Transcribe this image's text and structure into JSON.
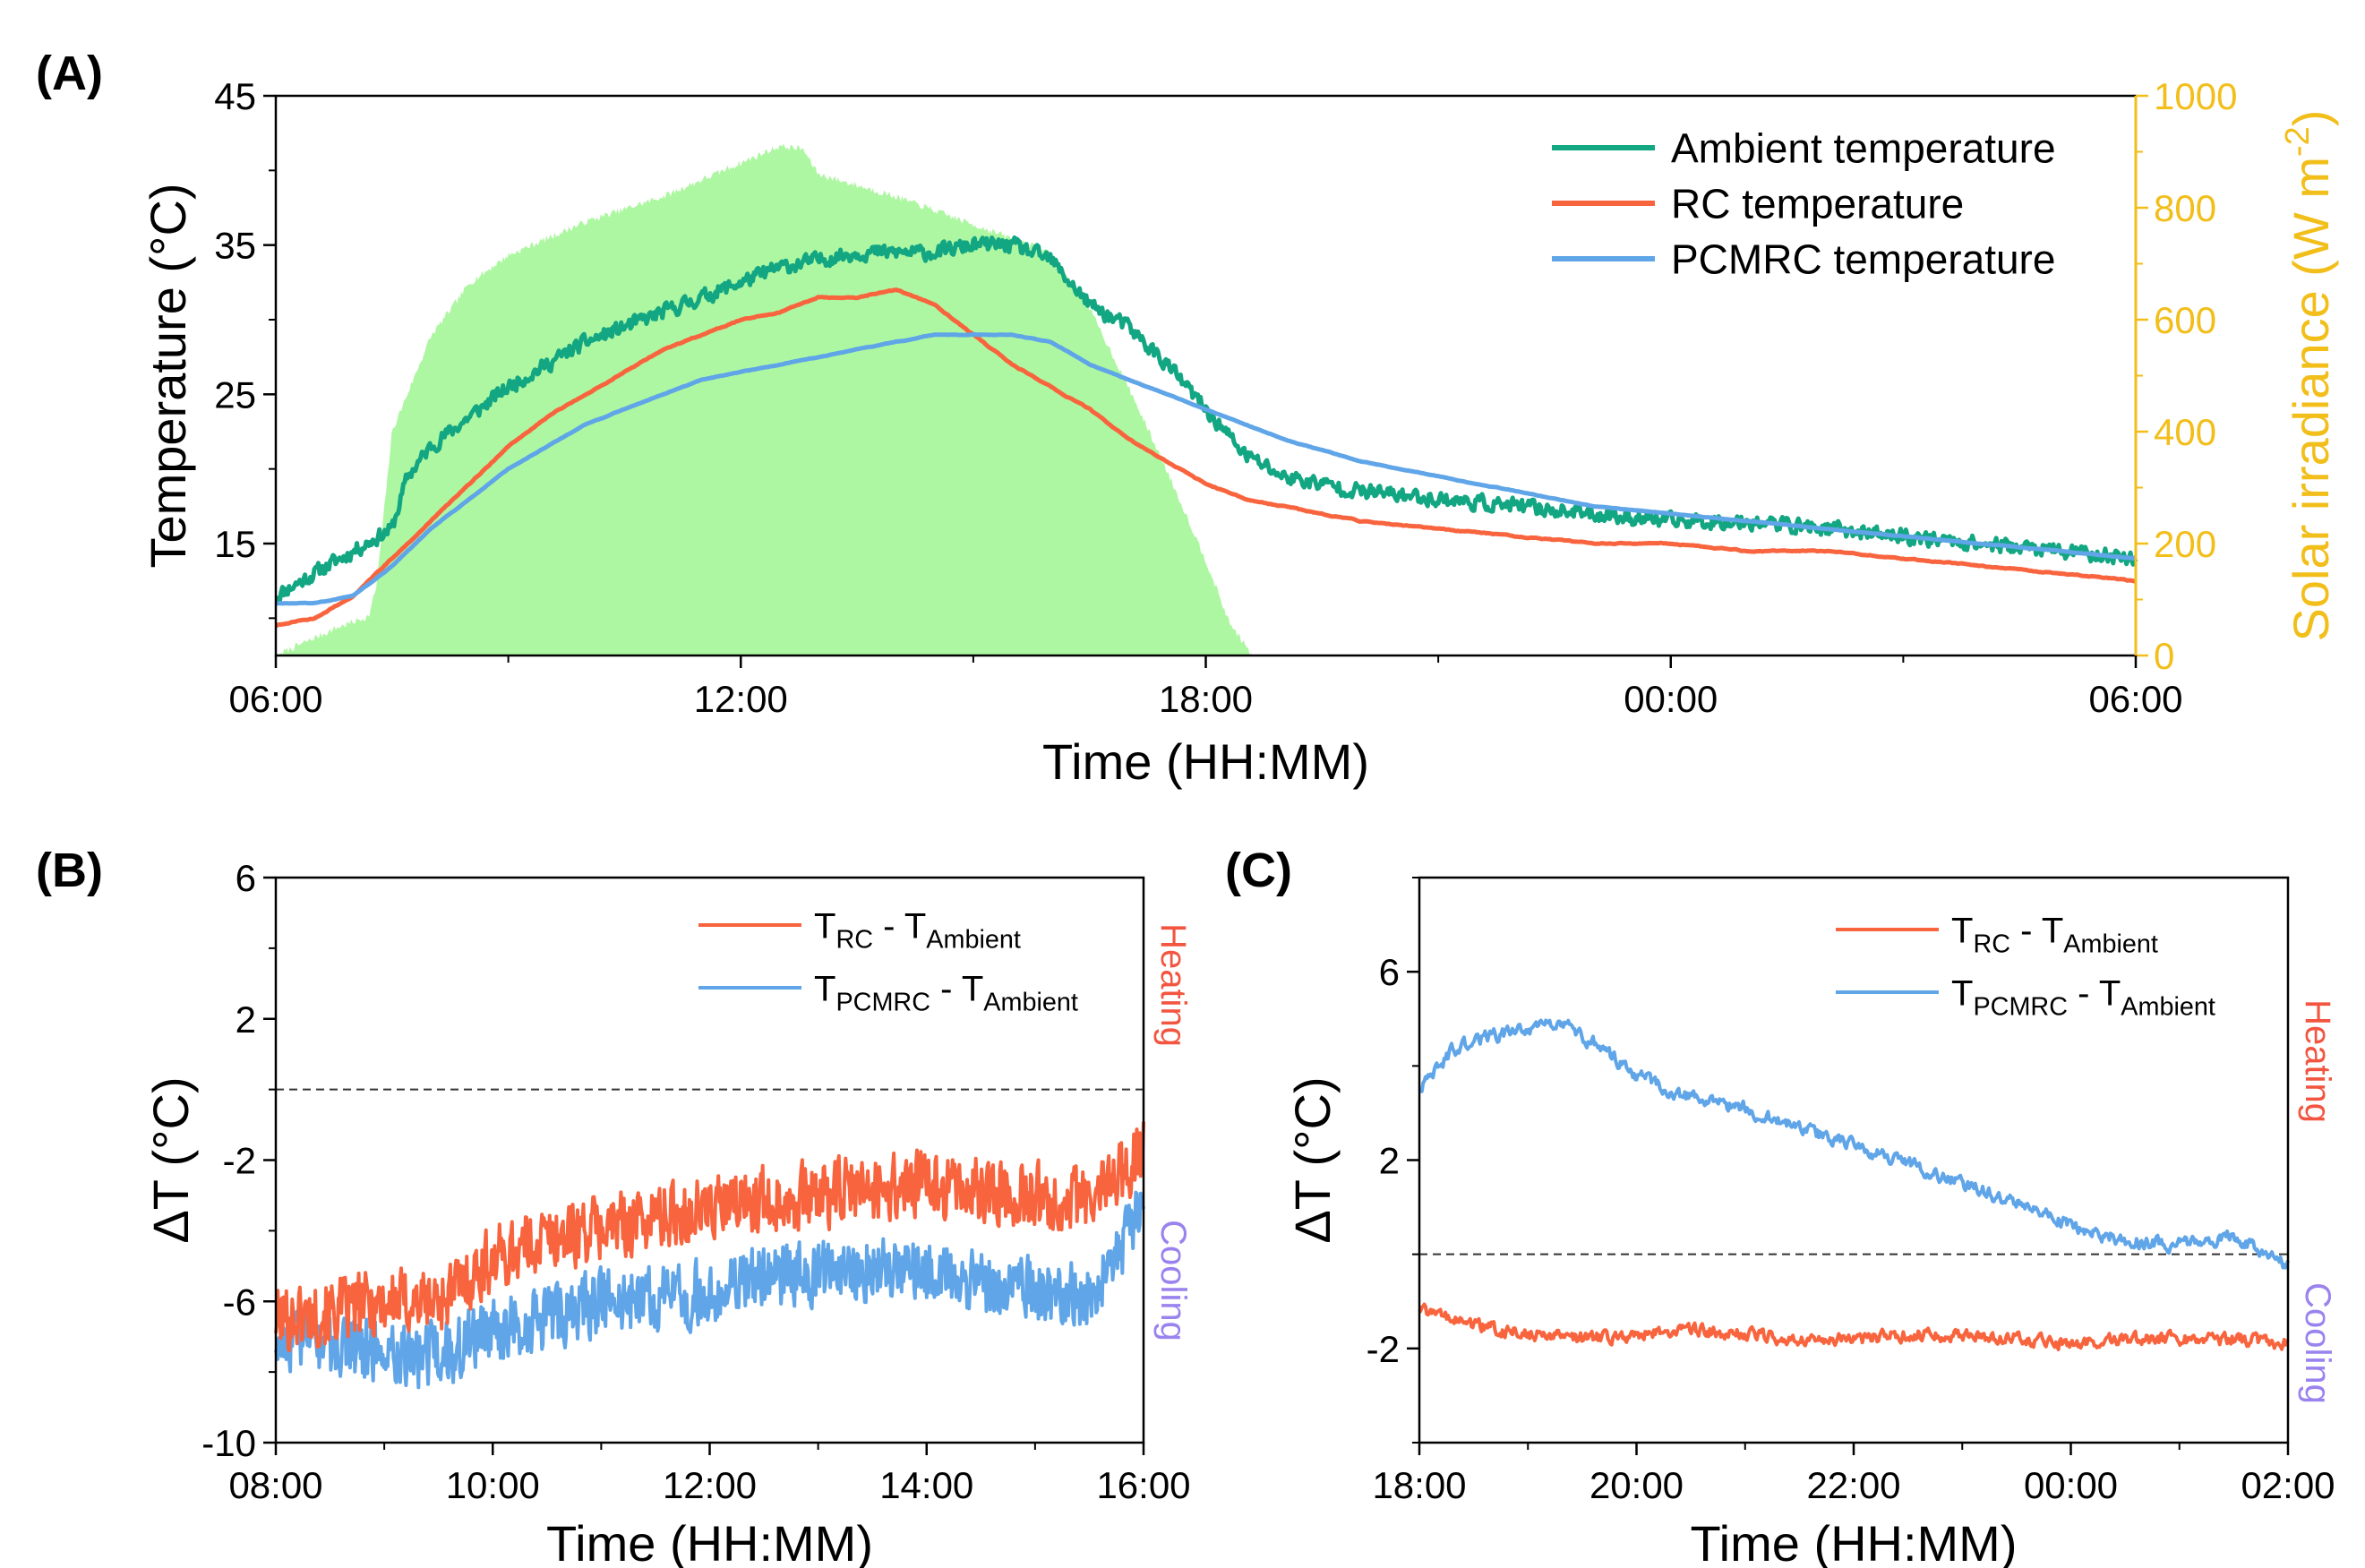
{
  "colors": {
    "ambient": "#12A682",
    "rc": "#F8643E",
    "pcmrc": "#5FA5E8",
    "solar_fill": "#AEF7A2",
    "solar_axis": "#F2BE1A",
    "heating": "#F25540",
    "cooling": "#9A83EE",
    "axis": "#000000"
  },
  "chart_data": [
    {
      "panel_label": "(A)",
      "type": "line",
      "xlabel": "Time (HH:MM)",
      "ylabel": "Temperature (°C)",
      "y2label": "Solar irradiance (W m",
      "y2label_sup": "-2",
      "y2label_end": ")",
      "x_unit": "hours since 06:00 (start of day 1)",
      "xlim": [
        0,
        24
      ],
      "ylim": [
        7.5,
        45
      ],
      "y2lim": [
        0,
        1000
      ],
      "xticks": [
        0,
        6,
        12,
        18,
        24
      ],
      "xtick_labels": [
        "06:00",
        "12:00",
        "18:00",
        "00:00",
        "06:00"
      ],
      "yticks": [
        15,
        25,
        35,
        45
      ],
      "ytick_labels": [
        "15",
        "25",
        "35",
        "45"
      ],
      "y2ticks": [
        0,
        200,
        400,
        600,
        800,
        1000
      ],
      "y2tick_labels": [
        "0",
        "200",
        "400",
        "600",
        "800",
        "1000"
      ],
      "legend_position": "top-right",
      "legend": [
        "Ambient temperature",
        "RC temperature",
        "PCMRC temperature"
      ],
      "solar_irradiance": {
        "x": [
          0,
          0.8,
          1.2,
          1.3,
          1.5,
          2.0,
          2.5,
          3.0,
          4.0,
          5.0,
          6.0,
          6.5,
          6.8,
          7.0,
          7.5,
          8.0,
          9.0,
          10.0,
          10.5,
          11.0,
          11.5,
          12.0,
          12.3,
          12.6
        ],
        "y": [
          0,
          50,
          70,
          125,
          400,
          570,
          665,
          715,
          775,
          820,
          880,
          910,
          905,
          860,
          840,
          820,
          770,
          720,
          620,
          480,
          330,
          170,
          60,
          0
        ]
      },
      "series": [
        {
          "name": "Ambient temperature",
          "x": [
            0,
            0.5,
            1.0,
            1.5,
            1.7,
            2.0,
            2.5,
            3.0,
            3.5,
            4.0,
            4.5,
            5.0,
            5.5,
            6.0,
            6.5,
            7.0,
            7.5,
            8.0,
            8.5,
            9.0,
            9.5,
            10.0,
            10.5,
            11.0,
            11.5,
            12.0,
            12.5,
            13.0,
            14.0,
            15.0,
            16.0,
            17.0,
            18.0,
            19.0,
            20.0,
            21.0,
            22.0,
            23.0,
            24.0
          ],
          "y": [
            11.5,
            13.0,
            14.5,
            16.0,
            19.5,
            21.5,
            23.5,
            25.5,
            27.0,
            28.5,
            29.5,
            30.5,
            31.5,
            32.5,
            33.5,
            34.0,
            34.5,
            34.5,
            34.5,
            35.0,
            35.0,
            34.0,
            31.0,
            29.5,
            27.0,
            24.0,
            21.0,
            19.5,
            18.5,
            18.0,
            17.5,
            17.0,
            16.5,
            16.5,
            16.0,
            15.5,
            15.0,
            14.5,
            14.0
          ]
        },
        {
          "name": "RC temperature",
          "x": [
            0,
            0.5,
            1.0,
            1.5,
            2.0,
            2.5,
            3.0,
            3.5,
            4.0,
            4.5,
            5.0,
            5.5,
            6.0,
            6.5,
            7.0,
            7.5,
            8.0,
            8.5,
            9.0,
            9.5,
            10.0,
            10.5,
            11.0,
            11.5,
            12.0,
            12.5,
            13.0,
            14.0,
            15.0,
            16.0,
            17.0,
            18.0,
            19.0,
            20.0,
            21.0,
            22.0,
            23.0,
            24.0
          ],
          "y": [
            9.5,
            10.0,
            11.5,
            14.0,
            16.5,
            19.0,
            21.5,
            23.5,
            25.0,
            26.5,
            28.0,
            29.0,
            30.0,
            30.5,
            31.5,
            31.5,
            32.0,
            31.0,
            29.0,
            27.0,
            25.5,
            24.0,
            22.0,
            20.5,
            19.0,
            18.0,
            17.5,
            16.5,
            16.0,
            15.5,
            15.0,
            15.0,
            14.5,
            14.5,
            14.0,
            13.5,
            13.0,
            12.5
          ]
        },
        {
          "name": "PCMRC temperature",
          "x": [
            0,
            0.5,
            1.0,
            1.5,
            2.0,
            2.5,
            3.0,
            3.5,
            4.0,
            4.5,
            5.0,
            5.5,
            6.0,
            6.5,
            7.0,
            7.5,
            8.0,
            8.5,
            9.0,
            9.5,
            10.0,
            10.5,
            11.0,
            12.0,
            13.0,
            14.0,
            15.0,
            16.0,
            17.0,
            18.0,
            19.0,
            20.0,
            21.0,
            22.0,
            23.0,
            24.0
          ],
          "y": [
            11.0,
            11.0,
            11.5,
            13.5,
            16.0,
            18.0,
            20.0,
            21.5,
            23.0,
            24.0,
            25.0,
            26.0,
            26.5,
            27.0,
            27.5,
            28.0,
            28.5,
            29.0,
            29.0,
            29.0,
            28.5,
            27.0,
            26.0,
            24.0,
            22.0,
            20.5,
            19.5,
            18.5,
            17.5,
            17.0,
            16.5,
            16.0,
            15.5,
            15.0,
            14.5,
            14.0
          ]
        }
      ]
    },
    {
      "panel_label": "(B)",
      "type": "line",
      "xlabel": "Time (HH:MM)",
      "ylabel": "ΔT (°C)",
      "x_unit": "hours since 08:00",
      "xlim": [
        0,
        8
      ],
      "ylim": [
        -10,
        6
      ],
      "xticks": [
        0,
        2,
        4,
        6,
        8
      ],
      "xtick_labels": [
        "08:00",
        "10:00",
        "12:00",
        "14:00",
        "16:00"
      ],
      "yticks": [
        -10,
        -6,
        -2,
        2,
        6
      ],
      "ytick_labels": [
        "-10",
        "-6",
        "-2",
        "2",
        "6"
      ],
      "reference_line_y": 0,
      "side_labels": {
        "top": "Heating",
        "bottom": "Cooling"
      },
      "legend_position": "top-right",
      "legend": [
        {
          "main": "T",
          "sub": "RC",
          "mid": " - T",
          "sub2": "Ambient"
        },
        {
          "main": "T",
          "sub": "PCMRC",
          "mid": " - T",
          "sub2": "Ambient"
        }
      ],
      "series": [
        {
          "name": "T_RC - T_Ambient",
          "x": [
            0,
            0.5,
            1.0,
            1.5,
            2.0,
            2.5,
            3.0,
            3.5,
            4.0,
            4.5,
            5.0,
            5.5,
            6.0,
            6.5,
            7.0,
            7.5,
            8.0
          ],
          "y": [
            -6.5,
            -6.3,
            -6.0,
            -6.0,
            -4.8,
            -4.2,
            -3.9,
            -3.6,
            -3.4,
            -3.1,
            -3.0,
            -2.8,
            -2.7,
            -2.9,
            -3.0,
            -3.2,
            -1.7
          ]
        },
        {
          "name": "T_PCMRC - T_Ambient",
          "x": [
            0,
            0.5,
            1.0,
            1.5,
            2.0,
            2.5,
            3.0,
            3.5,
            4.0,
            4.5,
            5.0,
            5.5,
            6.0,
            6.5,
            7.0,
            7.5,
            8.0
          ],
          "y": [
            -7.0,
            -7.2,
            -7.4,
            -7.6,
            -6.8,
            -6.5,
            -6.0,
            -5.9,
            -5.8,
            -5.3,
            -5.2,
            -5.1,
            -5.2,
            -5.5,
            -5.7,
            -5.8,
            -3.4
          ]
        }
      ]
    },
    {
      "panel_label": "(C)",
      "type": "line",
      "xlabel": "Time (HH:MM)",
      "ylabel": "ΔT (°C)",
      "x_unit": "hours since 18:00",
      "xlim": [
        0,
        8
      ],
      "ylim": [
        -4,
        8
      ],
      "xticks": [
        0,
        2,
        4,
        6,
        8
      ],
      "xtick_labels": [
        "18:00",
        "20:00",
        "22:00",
        "00:00",
        "02:00"
      ],
      "yticks": [
        -2,
        2,
        6
      ],
      "ytick_labels": [
        "-2",
        "2",
        "6"
      ],
      "reference_line_y": 0,
      "side_labels": {
        "top": "Heating",
        "bottom": "Cooling"
      },
      "legend_position": "top-right",
      "legend": [
        {
          "main": "T",
          "sub": "RC",
          "mid": " - T",
          "sub2": "Ambient"
        },
        {
          "main": "T",
          "sub": "PCMRC",
          "mid": " - T",
          "sub2": "Ambient"
        }
      ],
      "series": [
        {
          "name": "T_RC - T_Ambient",
          "x": [
            0,
            0.5,
            1.0,
            1.5,
            2.0,
            2.5,
            3.0,
            3.5,
            4.0,
            4.5,
            5.0,
            5.5,
            6.0,
            6.5,
            7.0,
            7.5,
            8.0
          ],
          "y": [
            -1.2,
            -1.5,
            -1.7,
            -1.8,
            -1.7,
            -1.6,
            -1.7,
            -1.8,
            -1.8,
            -1.7,
            -1.7,
            -1.8,
            -1.9,
            -1.8,
            -1.8,
            -1.8,
            -1.9
          ]
        },
        {
          "name": "T_PCMRC - T_Ambient",
          "x": [
            0,
            0.3,
            0.6,
            1.0,
            1.3,
            1.6,
            2.0,
            2.5,
            3.0,
            3.5,
            4.0,
            4.5,
            5.0,
            5.5,
            6.0,
            6.5,
            7.0,
            7.5,
            8.0
          ],
          "y": [
            3.5,
            4.3,
            4.6,
            4.8,
            4.9,
            4.5,
            3.8,
            3.3,
            3.1,
            2.7,
            2.3,
            1.9,
            1.5,
            1.1,
            0.6,
            0.3,
            0.2,
            0.4,
            -0.2
          ]
        }
      ]
    }
  ]
}
